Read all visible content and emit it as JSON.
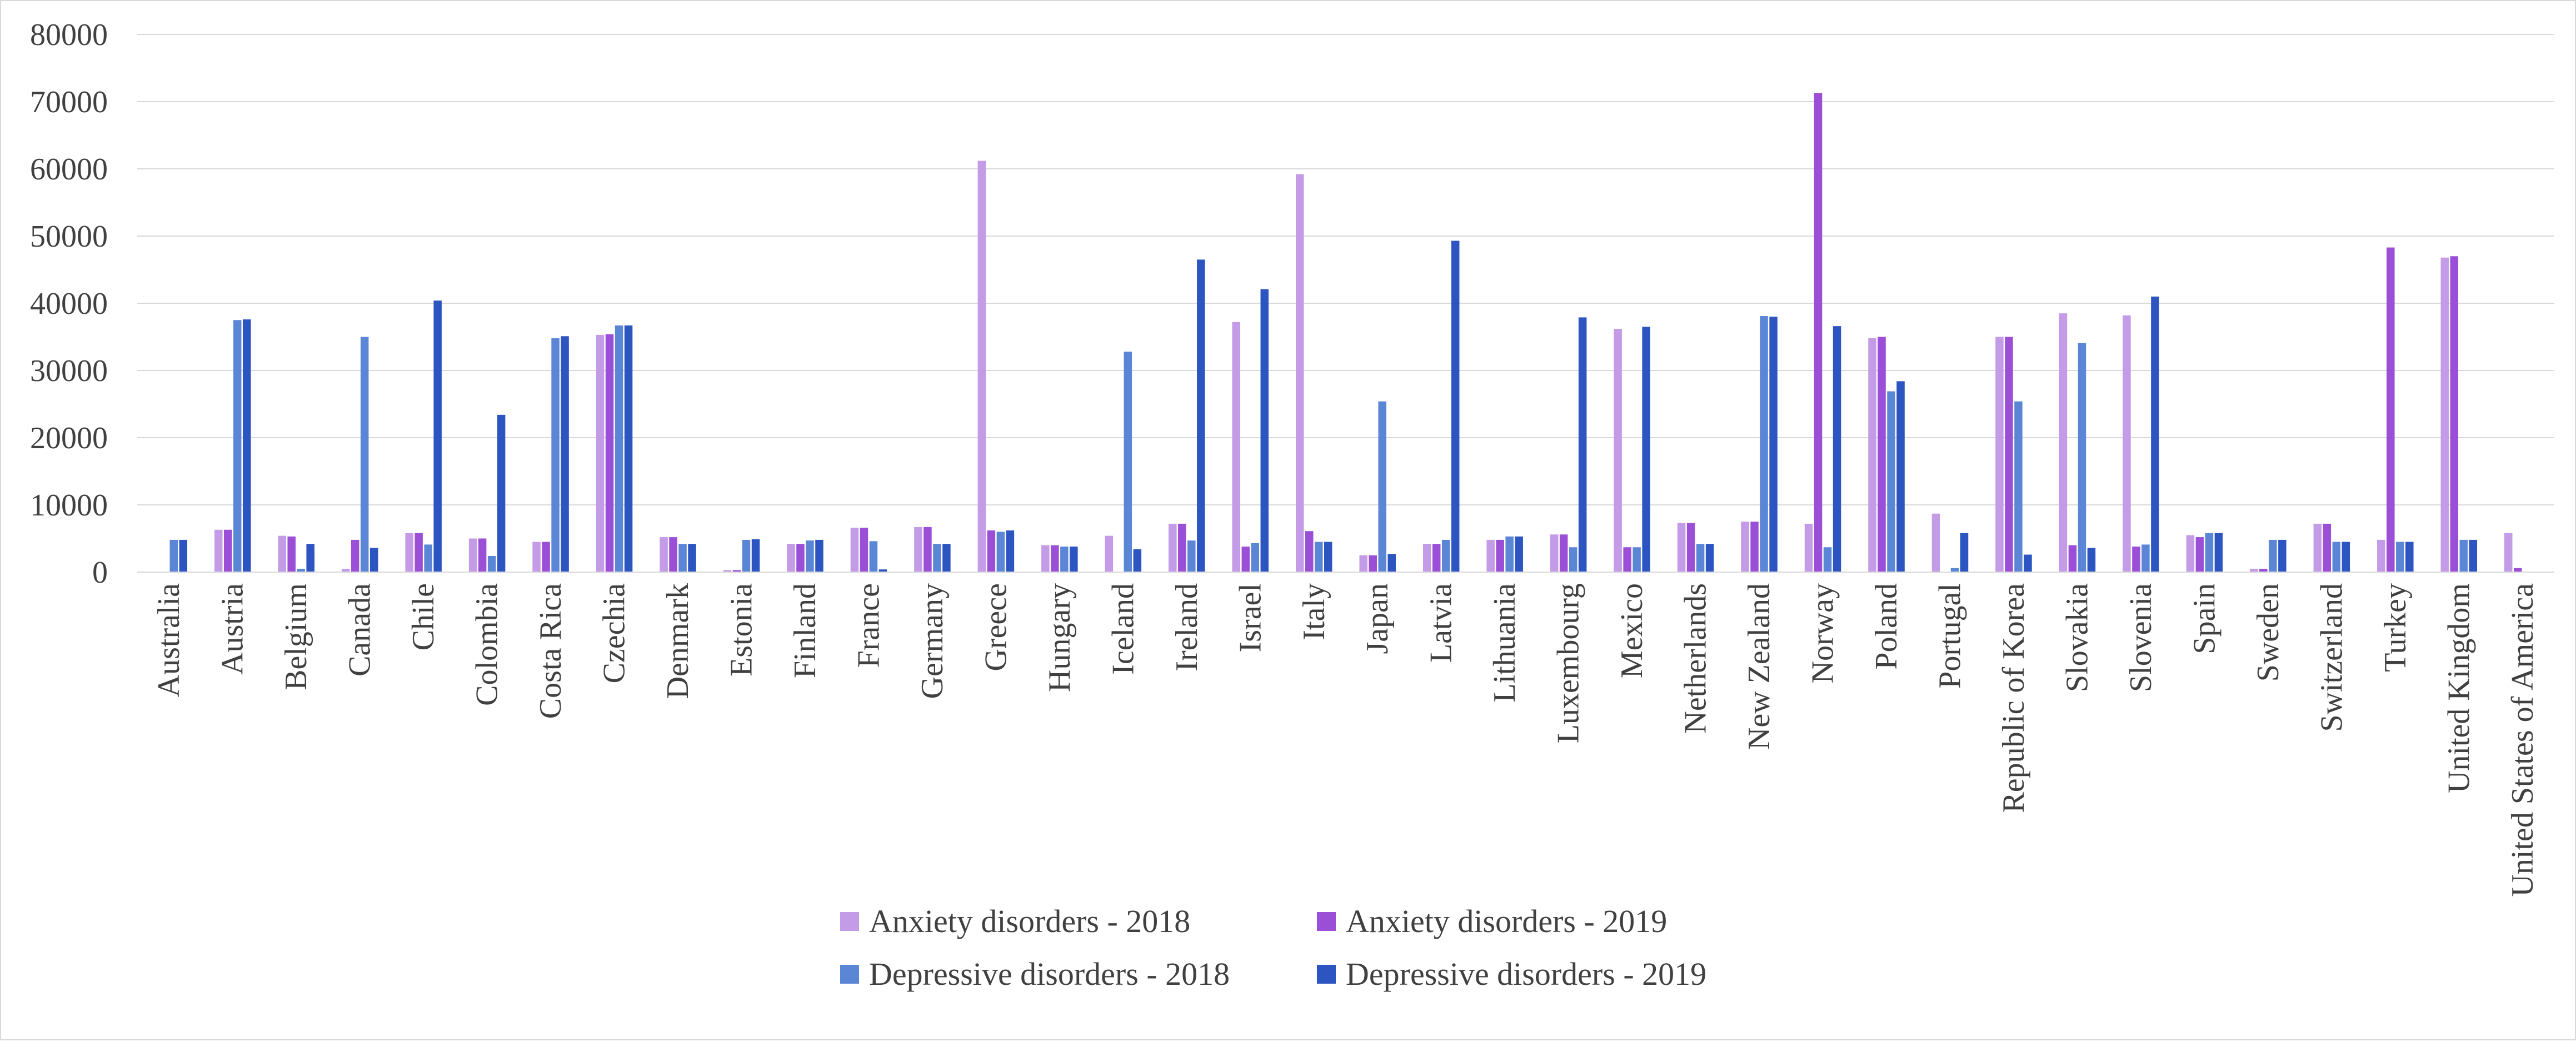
{
  "chart_data": {
    "type": "bar",
    "title": "",
    "xlabel": "",
    "ylabel": "",
    "ylim": [
      0,
      80000
    ],
    "yticks": [
      0,
      10000,
      20000,
      30000,
      40000,
      50000,
      60000,
      70000,
      80000
    ],
    "grid": true,
    "legend_position": "bottom",
    "categories": [
      "Australia",
      "Austria",
      "Belgium",
      "Canada",
      "Chile",
      "Colombia",
      "Costa Rica",
      "Czechia",
      "Denmark",
      "Estonia",
      "Finland",
      "France",
      "Germany",
      "Greece",
      "Hungary",
      "Iceland",
      "Ireland",
      "Israel",
      "Italy",
      "Japan",
      "Latvia",
      "Lithuania",
      "Luxembourg",
      "Mexico",
      "Netherlands",
      "New Zealand",
      "Norway",
      "Poland",
      "Portugal",
      "Republic of Korea",
      "Slovakia",
      "Slovenia",
      "Spain",
      "Sweden",
      "Switzerland",
      "Turkey",
      "United Kingdom",
      "United States of America"
    ],
    "series": [
      {
        "name": "Anxiety disorders - 2018",
        "color": "#c39be6",
        "values": [
          0,
          6300,
          5400,
          500,
          5800,
          5000,
          4500,
          35300,
          5200,
          300,
          4200,
          6600,
          6700,
          61200,
          4000,
          5400,
          7200,
          37200,
          59200,
          2500,
          4200,
          4800,
          5600,
          36200,
          7300,
          7500,
          7200,
          34800,
          8700,
          35000,
          38500,
          38200,
          5500,
          500,
          7200,
          4800,
          46800,
          5800
        ]
      },
      {
        "name": "Anxiety disorders - 2019",
        "color": "#9b4fd6",
        "values": [
          0,
          6300,
          5300,
          4800,
          5800,
          5000,
          4500,
          35400,
          5200,
          300,
          4200,
          6600,
          6700,
          6200,
          4000,
          0,
          7200,
          3800,
          6100,
          2500,
          4200,
          4800,
          5600,
          3700,
          7300,
          7500,
          71300,
          35000,
          0,
          35000,
          4000,
          3800,
          5200,
          500,
          7200,
          48300,
          47000,
          600
        ]
      },
      {
        "name": "Depressive disorders - 2018",
        "color": "#5b86d6",
        "values": [
          4800,
          37500,
          500,
          35000,
          4100,
          2400,
          34800,
          36700,
          4200,
          4800,
          4700,
          4600,
          4200,
          6000,
          3800,
          32800,
          4700,
          4300,
          4500,
          25400,
          4800,
          5300,
          3700,
          3700,
          4200,
          38100,
          3700,
          26900,
          600,
          25400,
          34100,
          4100,
          5800,
          4800,
          4500,
          4500,
          4800,
          0
        ]
      },
      {
        "name": "Depressive disorders - 2019",
        "color": "#2c55c2",
        "values": [
          4800,
          37600,
          4200,
          3600,
          40400,
          23400,
          35100,
          36700,
          4200,
          4900,
          4800,
          400,
          4200,
          6200,
          3800,
          3400,
          46500,
          42100,
          4500,
          2700,
          49300,
          5300,
          37900,
          36500,
          4200,
          38000,
          36600,
          28400,
          5800,
          2600,
          3600,
          41000,
          5800,
          4800,
          4500,
          4500,
          4800,
          0
        ]
      }
    ]
  }
}
